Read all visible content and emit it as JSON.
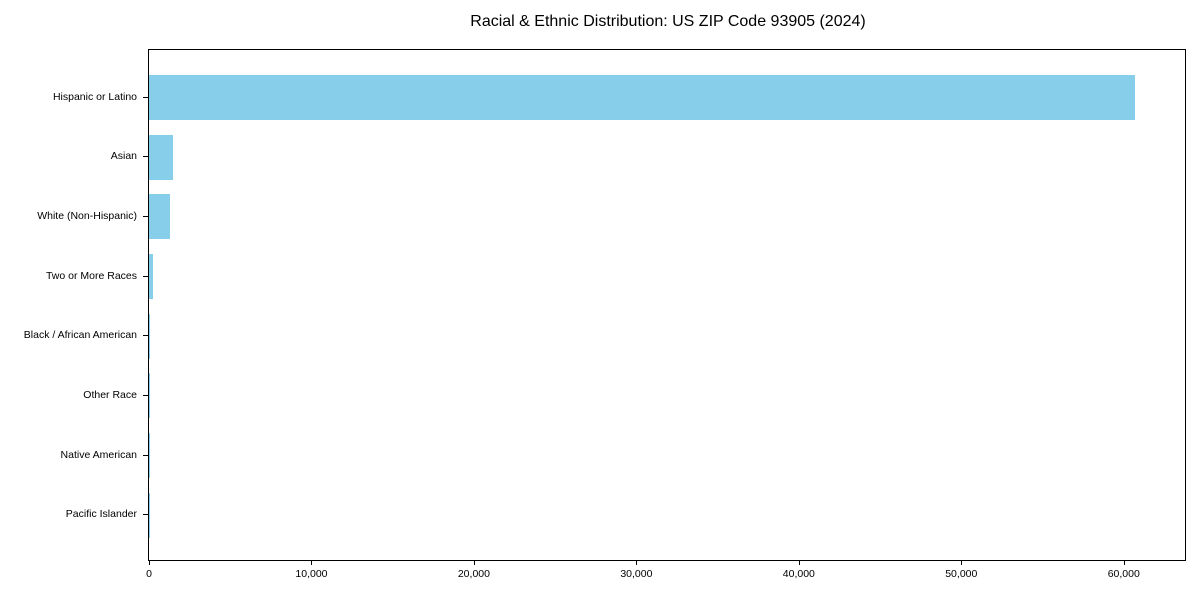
{
  "title": "Racial & Ethnic Distribution: US ZIP Code 93905 (2024)",
  "colors": {
    "bar": "#87CEEB",
    "axis": "#000000",
    "background": "#FFFFFF",
    "text": "#000000"
  },
  "chart_data": {
    "type": "bar",
    "orientation": "horizontal",
    "title": "Racial & Ethnic Distribution: US ZIP Code 93905 (2024)",
    "categories": [
      "Hispanic or Latino",
      "Asian",
      "White (Non-Hispanic)",
      "Two or More Races",
      "Black / African American",
      "Other Race",
      "Native American",
      "Pacific Islander"
    ],
    "values": [
      60700,
      1500,
      1300,
      250,
      75,
      30,
      20,
      10
    ],
    "xlabel": "",
    "ylabel": "",
    "xlim": [
      0,
      63770
    ],
    "x_ticks": [
      0,
      10000,
      20000,
      30000,
      40000,
      50000,
      60000
    ],
    "x_tick_labels": [
      "0",
      "10,000",
      "20,000",
      "30,000",
      "40,000",
      "50,000",
      "60,000"
    ],
    "grid": false,
    "legend": null,
    "bar_color": "#87CEEB",
    "value_order": "descending_top_to_bottom"
  }
}
